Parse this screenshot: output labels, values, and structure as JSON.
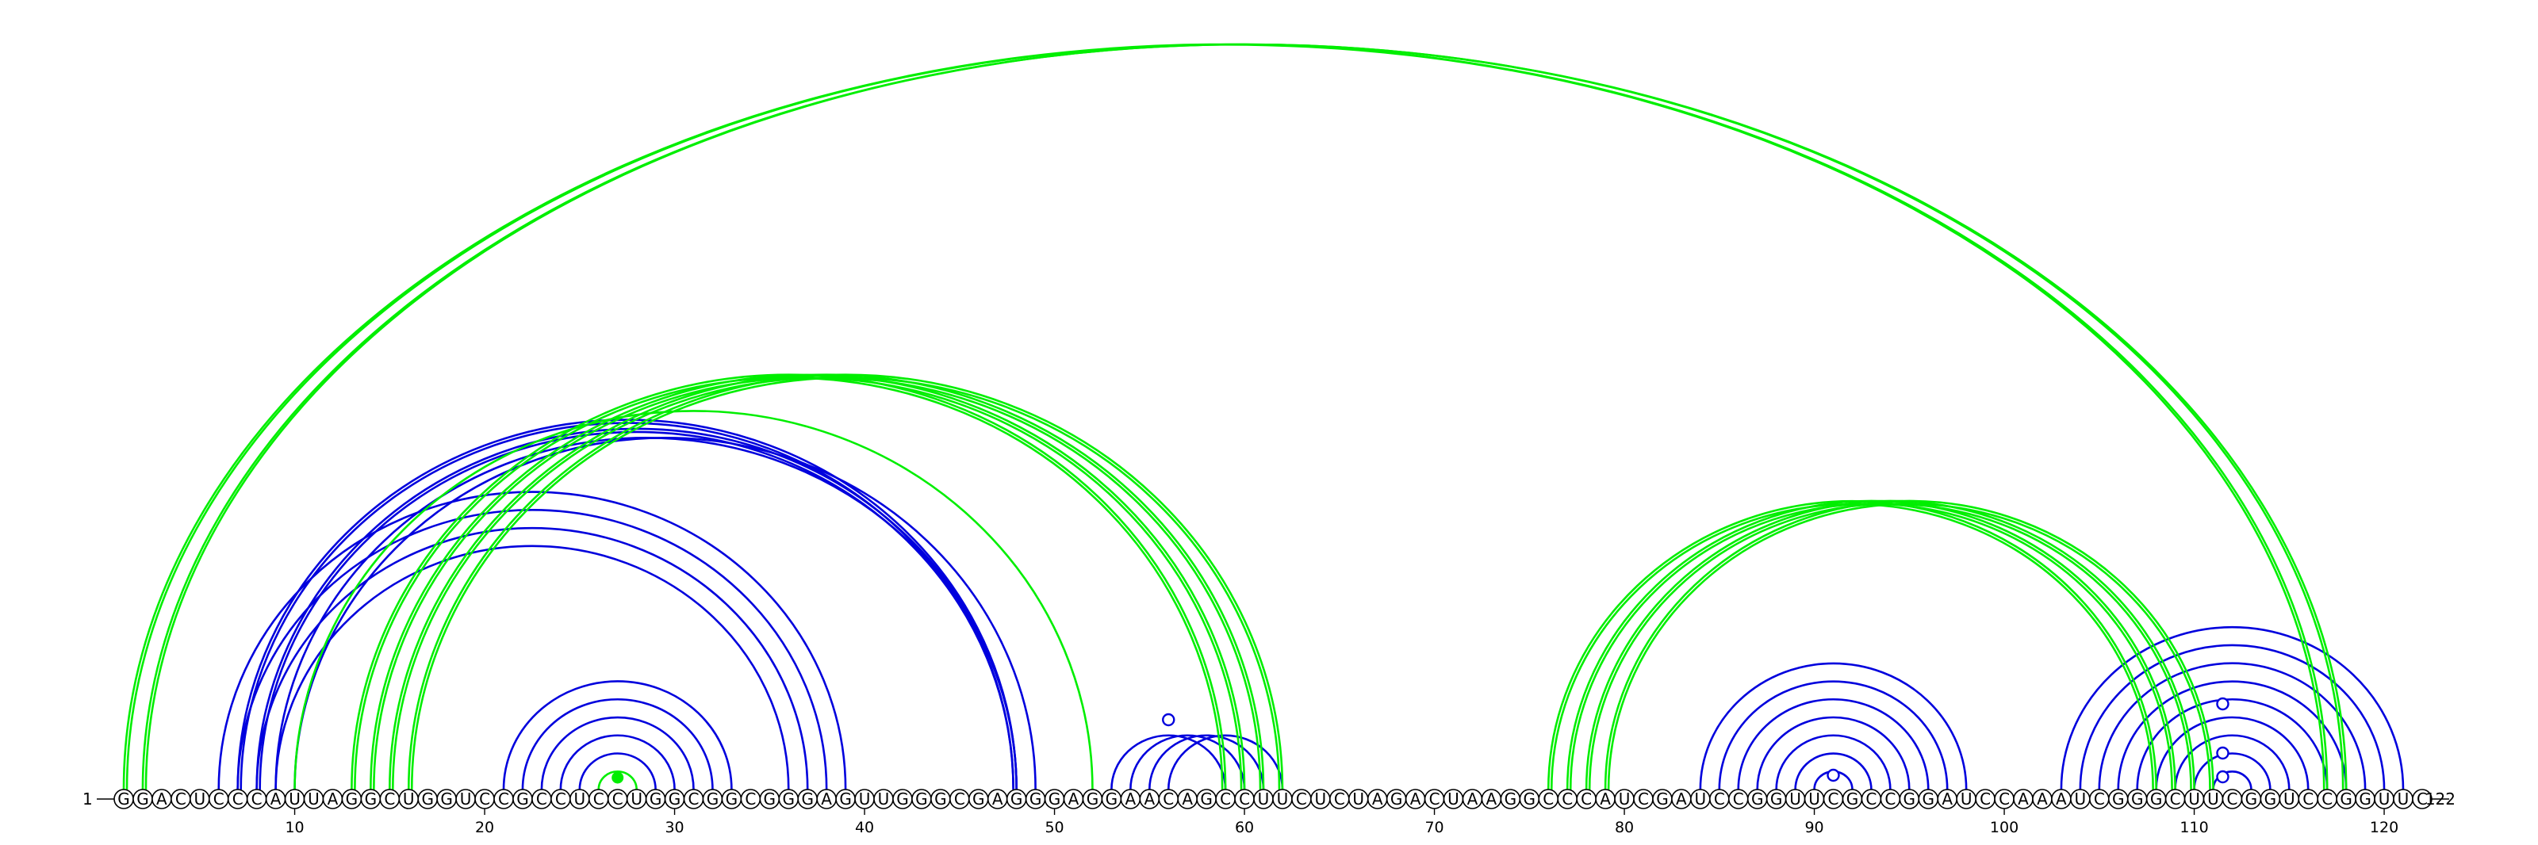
{
  "diagram": {
    "type": "rna-arc-diagram",
    "sequence": "GGACUCCCAUUAGGCUGGUCCGCCUCCUGGCGGCGGGAGUUGGGCGAGGGAGGAACAGCCUUCUCUAGACUAAGGCCCAUCGAUCCGGUUCGCCGGAUCCAAAUCGGGCUUCGGUCCGGUUC",
    "length": 122,
    "start_label": "1",
    "end_label": "122",
    "tick_labels": [
      "10",
      "20",
      "30",
      "40",
      "50",
      "60",
      "70",
      "80",
      "90",
      "100",
      "110",
      "120"
    ],
    "colors": {
      "blue": "#0000dd",
      "green": "#00ee00"
    },
    "blue_pairs": [
      [
        6,
        39
      ],
      [
        7,
        38
      ],
      [
        8,
        37
      ],
      [
        9,
        36
      ],
      [
        7,
        48
      ],
      [
        8,
        48
      ],
      [
        9,
        48
      ],
      [
        10,
        49
      ],
      [
        21,
        33
      ],
      [
        22,
        32
      ],
      [
        23,
        31
      ],
      [
        24,
        30
      ],
      [
        25,
        29
      ],
      [
        53,
        59
      ],
      [
        54,
        60
      ],
      [
        55,
        61
      ],
      [
        56,
        62
      ],
      [
        84,
        98
      ],
      [
        85,
        97
      ],
      [
        86,
        96
      ],
      [
        87,
        95
      ],
      [
        88,
        94
      ],
      [
        89,
        93
      ],
      [
        90,
        92
      ],
      [
        103,
        121
      ],
      [
        104,
        120
      ],
      [
        105,
        119
      ],
      [
        106,
        118
      ],
      [
        107,
        117
      ],
      [
        108,
        116
      ],
      [
        109,
        115
      ],
      [
        110,
        114
      ],
      [
        111,
        113
      ]
    ],
    "green_pairs": [
      [
        1,
        117
      ],
      [
        2,
        118
      ],
      [
        13,
        59
      ],
      [
        14,
        60
      ],
      [
        15,
        61
      ],
      [
        16,
        62
      ],
      [
        10,
        52
      ],
      [
        26,
        28
      ],
      [
        76,
        108
      ],
      [
        77,
        109
      ],
      [
        78,
        110
      ],
      [
        79,
        111
      ]
    ],
    "double_pairs": [
      [
        1,
        117
      ],
      [
        2,
        118
      ],
      [
        13,
        59
      ],
      [
        14,
        60
      ],
      [
        15,
        61
      ],
      [
        16,
        62
      ],
      [
        76,
        108
      ],
      [
        77,
        109
      ],
      [
        78,
        110
      ],
      [
        79,
        111
      ],
      [
        7,
        48
      ],
      [
        8,
        48
      ]
    ],
    "blue_markers": [
      56,
      91,
      111.5,
      111.5,
      111.5
    ],
    "green_markers": [
      27
    ]
  }
}
